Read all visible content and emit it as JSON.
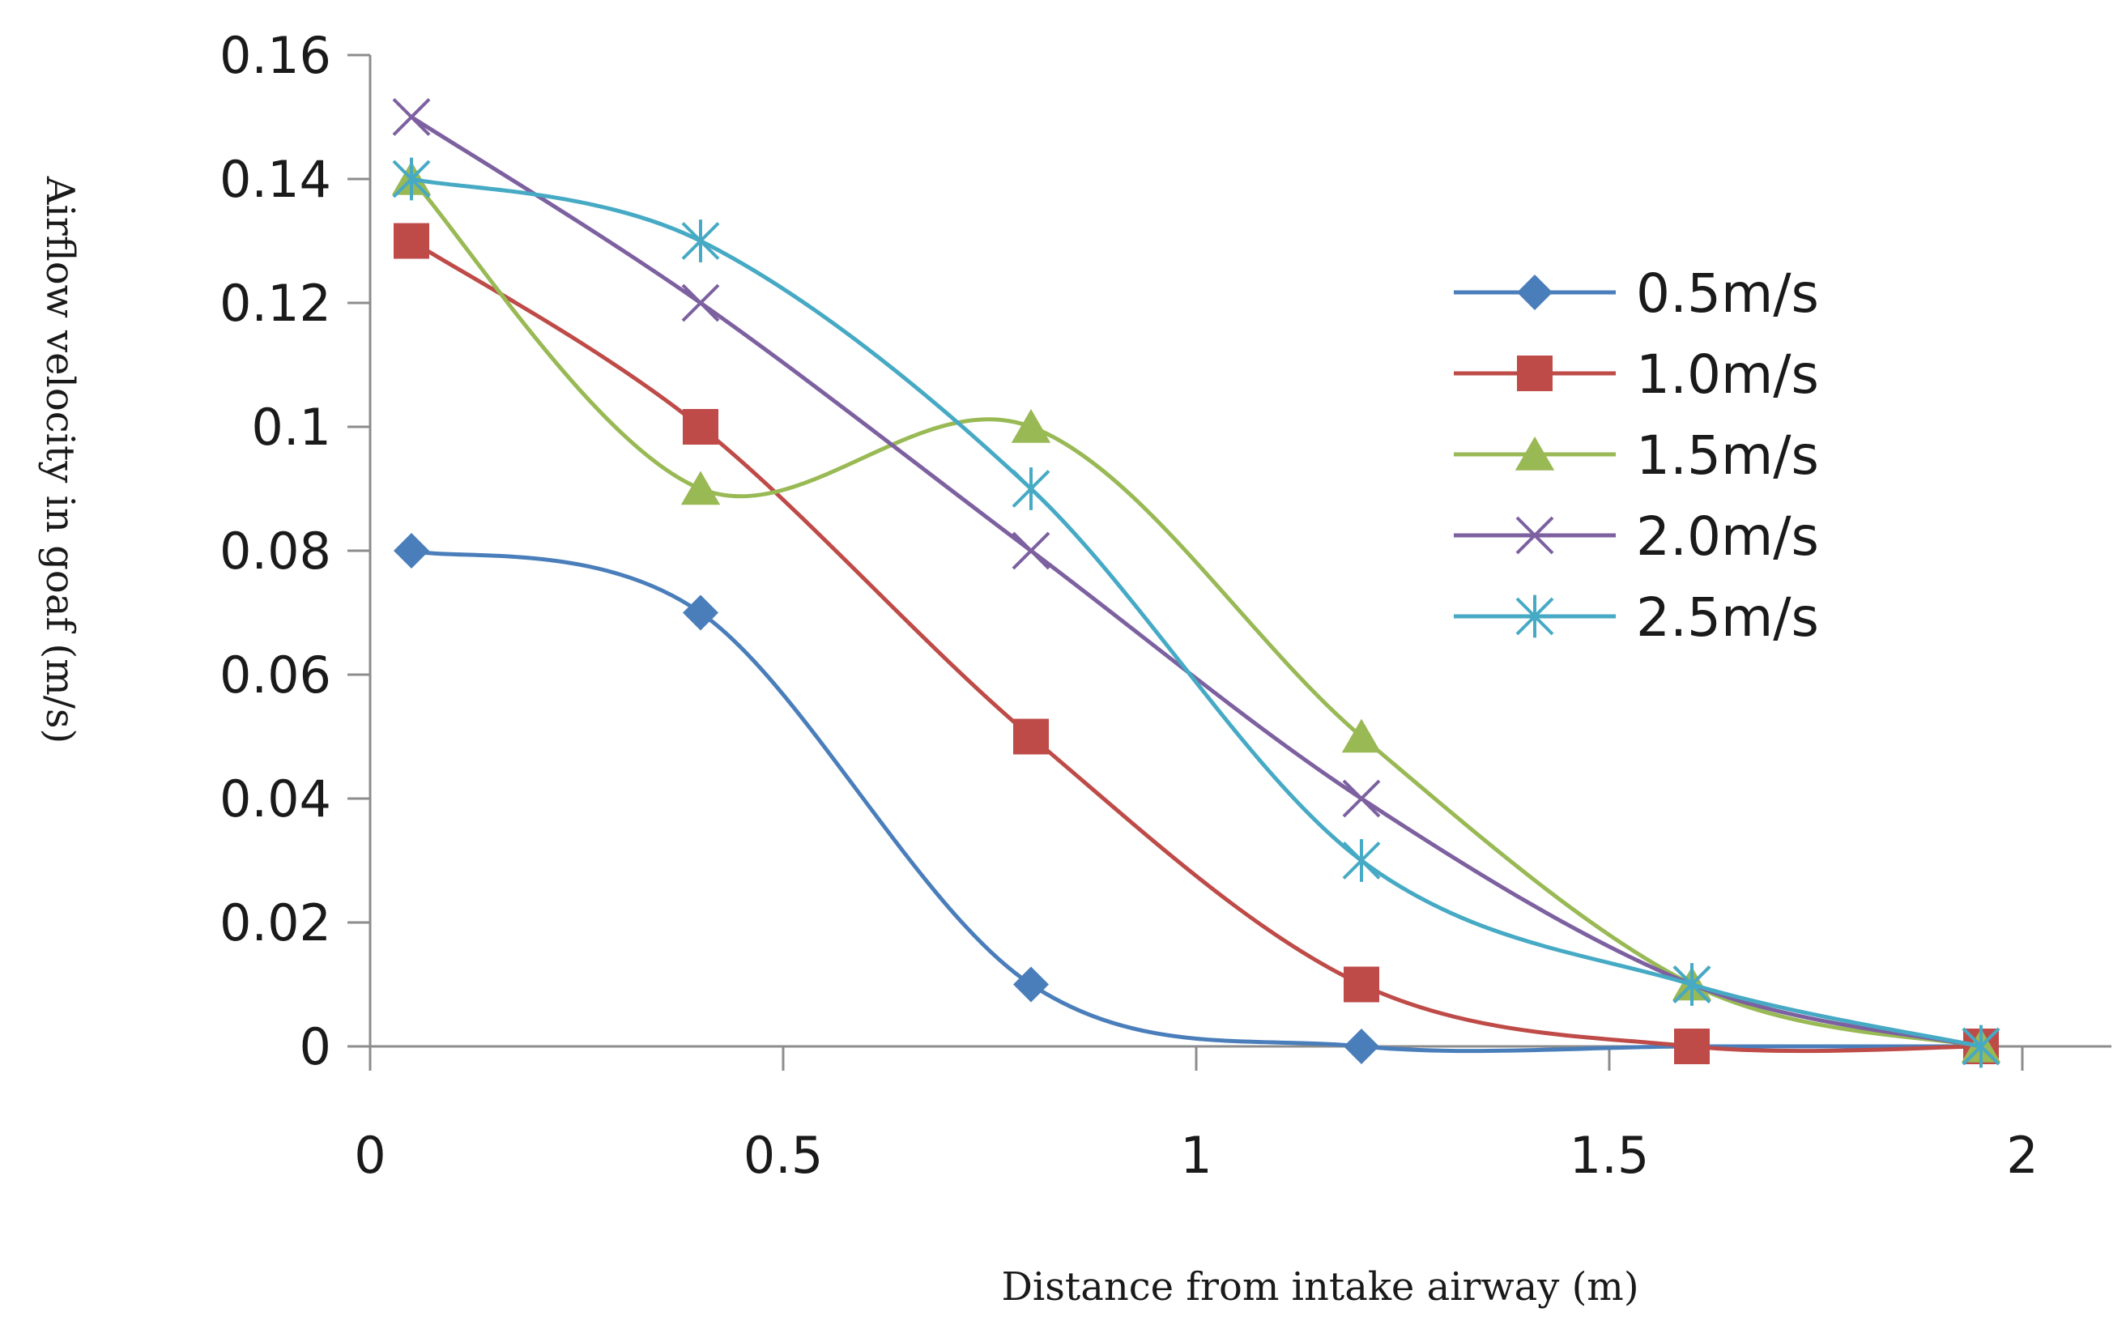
{
  "chart_data": {
    "type": "line",
    "title": "",
    "xlabel": "Distance from intake airway (m)",
    "ylabel": "Airflow velocity in goaf (m/s)",
    "xlim": [
      0,
      2
    ],
    "ylim": [
      0,
      0.16
    ],
    "xticks": [
      0,
      0.5,
      1,
      1.5,
      2
    ],
    "xtick_labels": [
      "0",
      "0.5",
      "1",
      "1.5",
      "2"
    ],
    "yticks": [
      0,
      0.02,
      0.04,
      0.06,
      0.08,
      0.1,
      0.12,
      0.14,
      0.16
    ],
    "ytick_labels": [
      "0",
      "0.02",
      "0.04",
      "0.06",
      "0.08",
      "0.1",
      "0.12",
      "0.14",
      "0.16"
    ],
    "grid": false,
    "legend_position": "right",
    "x": [
      0.05,
      0.4,
      0.8,
      1.2,
      1.6,
      1.95
    ],
    "series": [
      {
        "name": "0.5m/s",
        "color": "#4a7ebb",
        "marker": "diamond",
        "values": [
          0.08,
          0.07,
          0.01,
          0,
          0,
          0
        ]
      },
      {
        "name": "1.0m/s",
        "color": "#be4b48",
        "marker": "square",
        "values": [
          0.13,
          0.1,
          0.05,
          0.01,
          0,
          0
        ]
      },
      {
        "name": "1.5m/s",
        "color": "#98b954",
        "marker": "triangle",
        "values": [
          0.14,
          0.09,
          0.1,
          0.05,
          0.01,
          0
        ]
      },
      {
        "name": "2.0m/s",
        "color": "#7d60a0",
        "marker": "x",
        "values": [
          0.15,
          0.12,
          0.08,
          0.04,
          0.01,
          0
        ]
      },
      {
        "name": "2.5m/s",
        "color": "#46aac5",
        "marker": "star",
        "values": [
          0.14,
          0.13,
          0.09,
          0.03,
          0.01,
          0
        ]
      }
    ]
  }
}
